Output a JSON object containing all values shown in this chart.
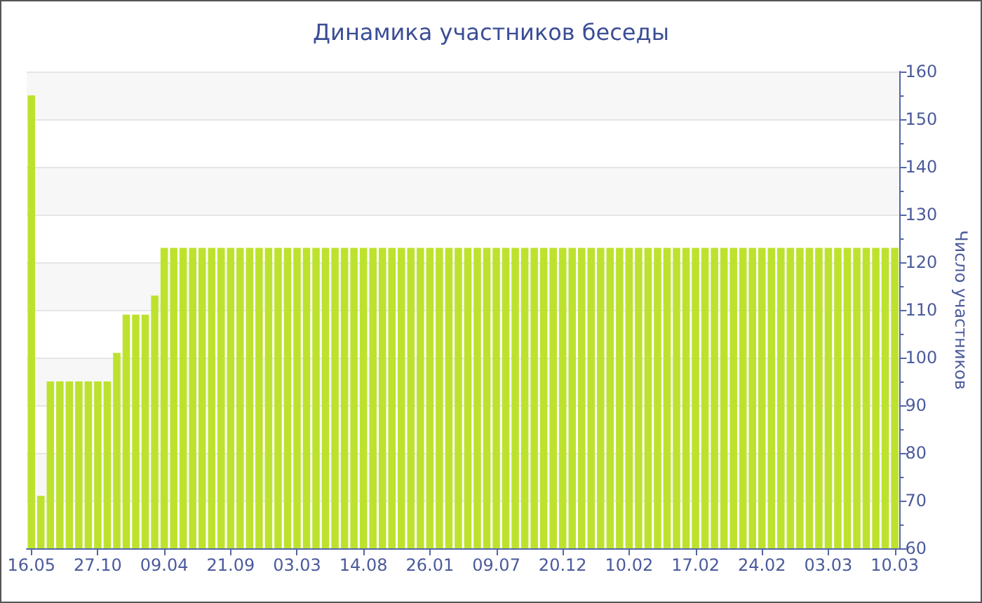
{
  "chart_data": {
    "type": "bar",
    "title": "Динамика участников беседы",
    "ylabel": "Число участников",
    "categories": [
      "16.05",
      null,
      null,
      null,
      null,
      null,
      null,
      "27.10",
      null,
      null,
      null,
      null,
      null,
      null,
      "09.04",
      null,
      null,
      null,
      null,
      null,
      null,
      "21.09",
      null,
      null,
      null,
      null,
      null,
      null,
      "03.03",
      null,
      null,
      null,
      null,
      null,
      null,
      "14.08",
      null,
      null,
      null,
      null,
      null,
      null,
      "26.01",
      null,
      null,
      null,
      null,
      null,
      null,
      "09.07",
      null,
      null,
      null,
      null,
      null,
      null,
      "20.12",
      null,
      null,
      null,
      null,
      null,
      null,
      "10.02",
      null,
      null,
      null,
      null,
      null,
      null,
      "17.02",
      null,
      null,
      null,
      null,
      null,
      null,
      "24.02",
      null,
      null,
      null,
      null,
      null,
      null,
      "03.03",
      null,
      null,
      null,
      null,
      null,
      null,
      "10.03"
    ],
    "values": [
      155,
      71,
      95,
      95,
      95,
      95,
      95,
      95,
      95,
      101,
      109,
      109,
      109,
      113,
      123,
      123,
      123,
      123,
      123,
      123,
      123,
      123,
      123,
      123,
      123,
      123,
      123,
      123,
      123,
      123,
      123,
      123,
      123,
      123,
      123,
      123,
      123,
      123,
      123,
      123,
      123,
      123,
      123,
      123,
      123,
      123,
      123,
      123,
      123,
      123,
      123,
      123,
      123,
      123,
      123,
      123,
      123,
      123,
      123,
      123,
      123,
      123,
      123,
      123,
      123,
      123,
      123,
      123,
      123,
      123,
      123,
      123,
      123,
      123,
      123,
      123,
      123,
      123,
      123,
      123,
      123,
      123,
      123,
      123,
      123,
      123,
      123,
      123,
      123,
      123,
      123,
      123
    ],
    "color": "#bde22e",
    "ylim": [
      60,
      160
    ],
    "yticks": [
      60,
      {
        "value": 65,
        "label": null
      },
      70,
      {
        "value": 75,
        "label": null
      },
      80,
      {
        "value": 85,
        "label": null
      },
      90,
      {
        "value": 95,
        "label": null
      },
      100,
      {
        "value": 105,
        "label": null
      },
      110,
      {
        "value": 115,
        "label": null
      },
      120,
      {
        "value": 125,
        "label": null
      },
      130,
      {
        "value": 135,
        "label": null
      },
      140,
      {
        "value": 145,
        "label": null
      },
      150,
      {
        "value": 155,
        "label": null
      },
      160
    ],
    "grid": "y"
  }
}
